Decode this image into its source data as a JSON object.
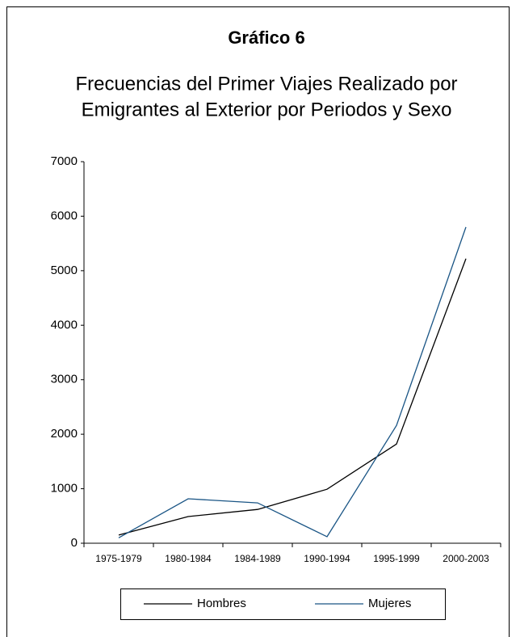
{
  "chart_data": {
    "type": "line",
    "title": "Gráfico 6",
    "subtitle": [
      "Frecuencias del Primer Viajes Realizado por",
      "Emigrantes al Exterior por Periodos y Sexo"
    ],
    "categories": [
      "1975-1979",
      "1980-1984",
      "1984-1989",
      "1990-1994",
      "1995-1999",
      "2000-2003"
    ],
    "series": [
      {
        "name": "Hombres",
        "color": "#000000",
        "values": [
          150,
          490,
          620,
          990,
          1820,
          5220
        ]
      },
      {
        "name": "Mujeres",
        "color": "#1a5585",
        "values": [
          100,
          815,
          740,
          120,
          2160,
          5800
        ]
      }
    ],
    "ylim": [
      0,
      7000
    ],
    "yticks": [
      0,
      1000,
      2000,
      3000,
      4000,
      5000,
      6000,
      7000
    ],
    "grid": false,
    "legend": "bottom"
  }
}
